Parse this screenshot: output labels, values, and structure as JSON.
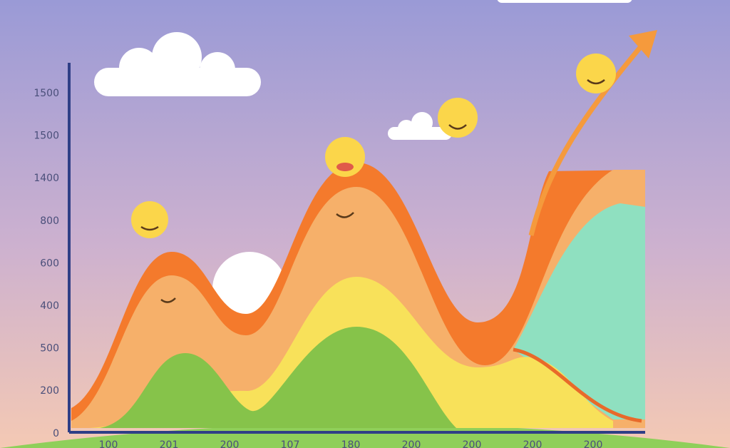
{
  "y_axis_labels": [
    "1500",
    "1500",
    "1400",
    "800",
    "600",
    "400",
    "500",
    "200",
    "0"
  ],
  "x_axis_labels": [
    "100",
    "201",
    "200",
    "107",
    "180",
    "200",
    "200",
    "200",
    "200"
  ]
}
